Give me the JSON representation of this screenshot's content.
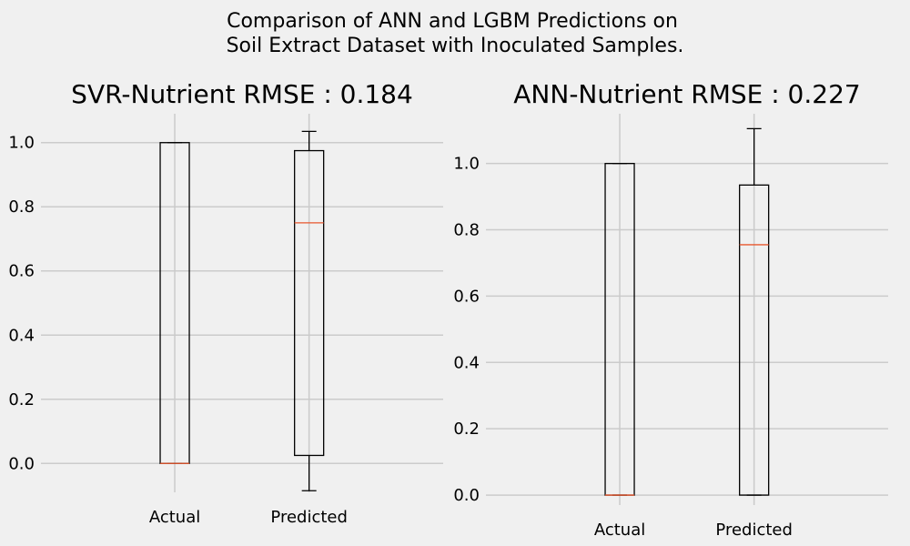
{
  "figure": {
    "suptitle_line1": "Comparison of ANN and LGBM Predictions on",
    "suptitle_line2": "Soil Extract Dataset with Inoculated Samples."
  },
  "colors": {
    "median": "#e8572d",
    "box": "#000000",
    "grid": "#cbcbcb",
    "background": "#f0f0f0"
  },
  "chart_data": [
    {
      "type": "boxplot",
      "title": "SVR-Nutrient RMSE : 0.184",
      "categories": [
        "Actual",
        "Predicted"
      ],
      "ylim": [
        -0.09,
        1.09
      ],
      "yticks": [
        0.0,
        0.2,
        0.4,
        0.6,
        0.8,
        1.0
      ],
      "ytick_labels": [
        "0.0",
        "0.2",
        "0.4",
        "0.6",
        "0.8",
        "1.0"
      ],
      "grid": true,
      "boxes": [
        {
          "label": "Actual",
          "whisker_low": 0.0,
          "q1": 0.0,
          "median": 0.0,
          "q3": 1.0,
          "whisker_high": 1.0
        },
        {
          "label": "Predicted",
          "whisker_low": -0.085,
          "q1": 0.025,
          "median": 0.75,
          "q3": 0.975,
          "whisker_high": 1.035
        }
      ]
    },
    {
      "type": "boxplot",
      "title": "ANN-Nutrient RMSE : 0.227",
      "categories": [
        "Actual",
        "Predicted"
      ],
      "ylim": [
        -0.03,
        1.15
      ],
      "yticks": [
        0.0,
        0.2,
        0.4,
        0.6,
        0.8,
        1.0
      ],
      "ytick_labels": [
        "0.0",
        "0.2",
        "0.4",
        "0.6",
        "0.8",
        "1.0"
      ],
      "grid": true,
      "boxes": [
        {
          "label": "Actual",
          "whisker_low": 0.0,
          "q1": 0.0,
          "median": 0.0,
          "q3": 1.0,
          "whisker_high": 1.0
        },
        {
          "label": "Predicted",
          "whisker_low": 0.0,
          "q1": 0.0,
          "median": 0.755,
          "q3": 0.935,
          "whisker_high": 1.105
        }
      ]
    }
  ]
}
